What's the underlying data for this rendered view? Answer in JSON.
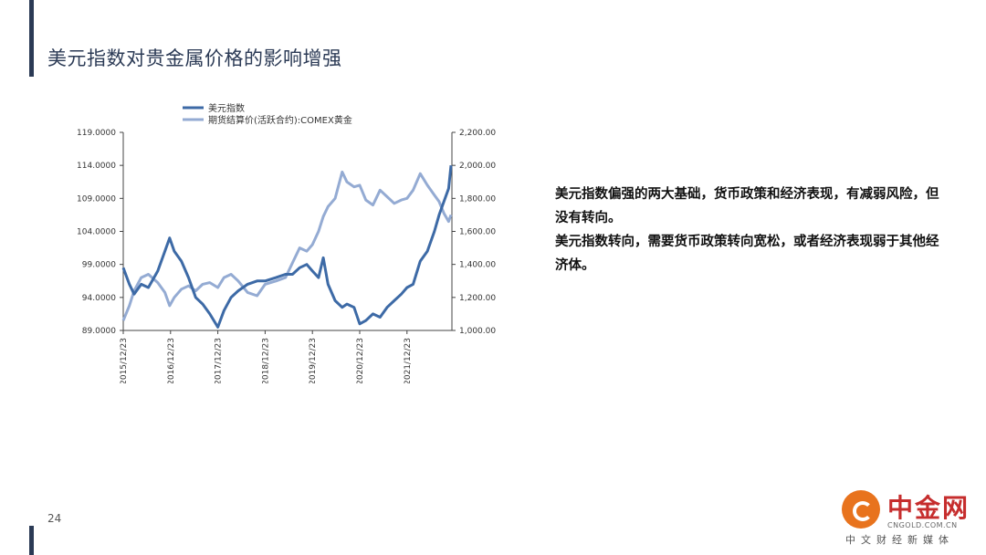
{
  "page": {
    "title": "美元指数对贵金属价格的影响增强",
    "page_number": "24"
  },
  "body": {
    "paragraph1": "美元指数偏强的两大基础，货币政策和经济表现，有减弱风险，但没有转向。",
    "paragraph2": "美元指数转向，需要货币政策转向宽松，或者经济表现弱于其他经济体。"
  },
  "logo": {
    "name": "中金网",
    "url": "CNGOLD.COM.CN",
    "tagline": "中文财经新媒体"
  },
  "colors": {
    "accent": "#2b3a55",
    "usd_series": "#3d6aa6",
    "gold_series": "#94abd3",
    "logo_orange": "#e8731d",
    "logo_red": "#c62d2d"
  },
  "chart_data": {
    "type": "line",
    "legend_position": "top",
    "grid": false,
    "x_tick_labels": [
      "2015/12/23",
      "2016/12/23",
      "2017/12/23",
      "2018/12/23",
      "2019/12/23",
      "2020/12/23",
      "2021/12/23"
    ],
    "x": [
      2015.97,
      2016.1,
      2016.2,
      2016.35,
      2016.5,
      2016.7,
      2016.85,
      2016.95,
      2017.05,
      2017.2,
      2017.35,
      2017.5,
      2017.65,
      2017.8,
      2017.97,
      2018.1,
      2018.25,
      2018.4,
      2018.6,
      2018.8,
      2018.97,
      2019.2,
      2019.4,
      2019.55,
      2019.7,
      2019.85,
      2019.97,
      2020.1,
      2020.2,
      2020.3,
      2020.45,
      2020.6,
      2020.7,
      2020.85,
      2020.97,
      2021.1,
      2021.25,
      2021.4,
      2021.55,
      2021.7,
      2021.85,
      2021.97,
      2022.1,
      2022.25,
      2022.4,
      2022.55,
      2022.65,
      2022.75,
      2022.85,
      2022.9
    ],
    "y_left": {
      "min": 89,
      "max": 119,
      "ticks": [
        "89.0000",
        "94.0000",
        "99.0000",
        "104.0000",
        "109.0000",
        "114.0000",
        "119.0000"
      ]
    },
    "y_right": {
      "min": 1000,
      "max": 2200,
      "ticks": [
        "1,000.00",
        "1,200.00",
        "1,400.00",
        "1,600.00",
        "1,800.00",
        "2,000.00",
        "2,200.00"
      ]
    },
    "series": [
      {
        "name": "美元指数",
        "axis": "left",
        "values": [
          98.5,
          96.0,
          94.5,
          96.0,
          95.5,
          98.0,
          101.0,
          103.0,
          101.0,
          99.5,
          97.0,
          94.0,
          93.0,
          91.5,
          89.5,
          92.0,
          94.0,
          95.0,
          96.0,
          96.5,
          96.5,
          97.0,
          97.5,
          97.5,
          98.5,
          99.0,
          98.0,
          97.0,
          100.0,
          96.0,
          93.5,
          92.5,
          93.0,
          92.5,
          90.0,
          90.5,
          91.5,
          91.0,
          92.5,
          93.5,
          94.5,
          95.5,
          96.0,
          99.5,
          101.0,
          104.0,
          106.5,
          108.5,
          110.5,
          114.0
        ]
      },
      {
        "name": "期货结算价(活跃合约):COMEX黄金",
        "axis": "right",
        "values": [
          1060,
          1150,
          1240,
          1320,
          1340,
          1290,
          1230,
          1150,
          1200,
          1250,
          1270,
          1240,
          1280,
          1290,
          1260,
          1320,
          1340,
          1300,
          1230,
          1210,
          1280,
          1300,
          1320,
          1410,
          1500,
          1480,
          1520,
          1600,
          1690,
          1750,
          1800,
          1960,
          1900,
          1870,
          1880,
          1790,
          1760,
          1850,
          1810,
          1770,
          1790,
          1800,
          1850,
          1950,
          1880,
          1820,
          1780,
          1710,
          1660,
          1700
        ]
      }
    ]
  }
}
